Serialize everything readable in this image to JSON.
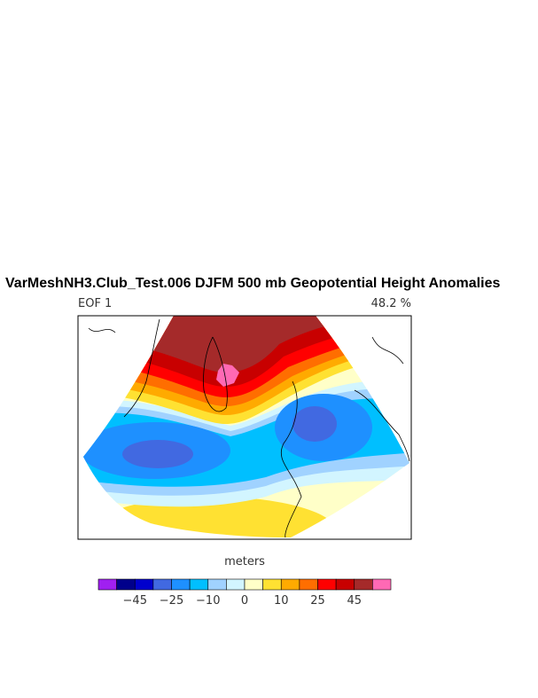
{
  "title": "VarMeshNH3.Club_Test.006 DJFM 500 mb Geopotential Height Anomalies",
  "left_subtitle": "EOF 1",
  "right_subtitle": "48.2 %",
  "colorbar": {
    "label": "meters",
    "colors": [
      "#a020f0",
      "#00008b",
      "#0000cd",
      "#4169e1",
      "#1e90ff",
      "#00bfff",
      "#a0d2ff",
      "#d2f5ff",
      "#ffffc8",
      "#ffe132",
      "#ffaa00",
      "#ff6e00",
      "#ff0000",
      "#c80000",
      "#a52a2a",
      "#ff69b4"
    ],
    "ticks": [
      {
        "value": -45,
        "label": "−45"
      },
      {
        "value": -25,
        "label": "−25"
      },
      {
        "value": -10,
        "label": "−10"
      },
      0,
      10,
      25,
      45
    ]
  }
}
